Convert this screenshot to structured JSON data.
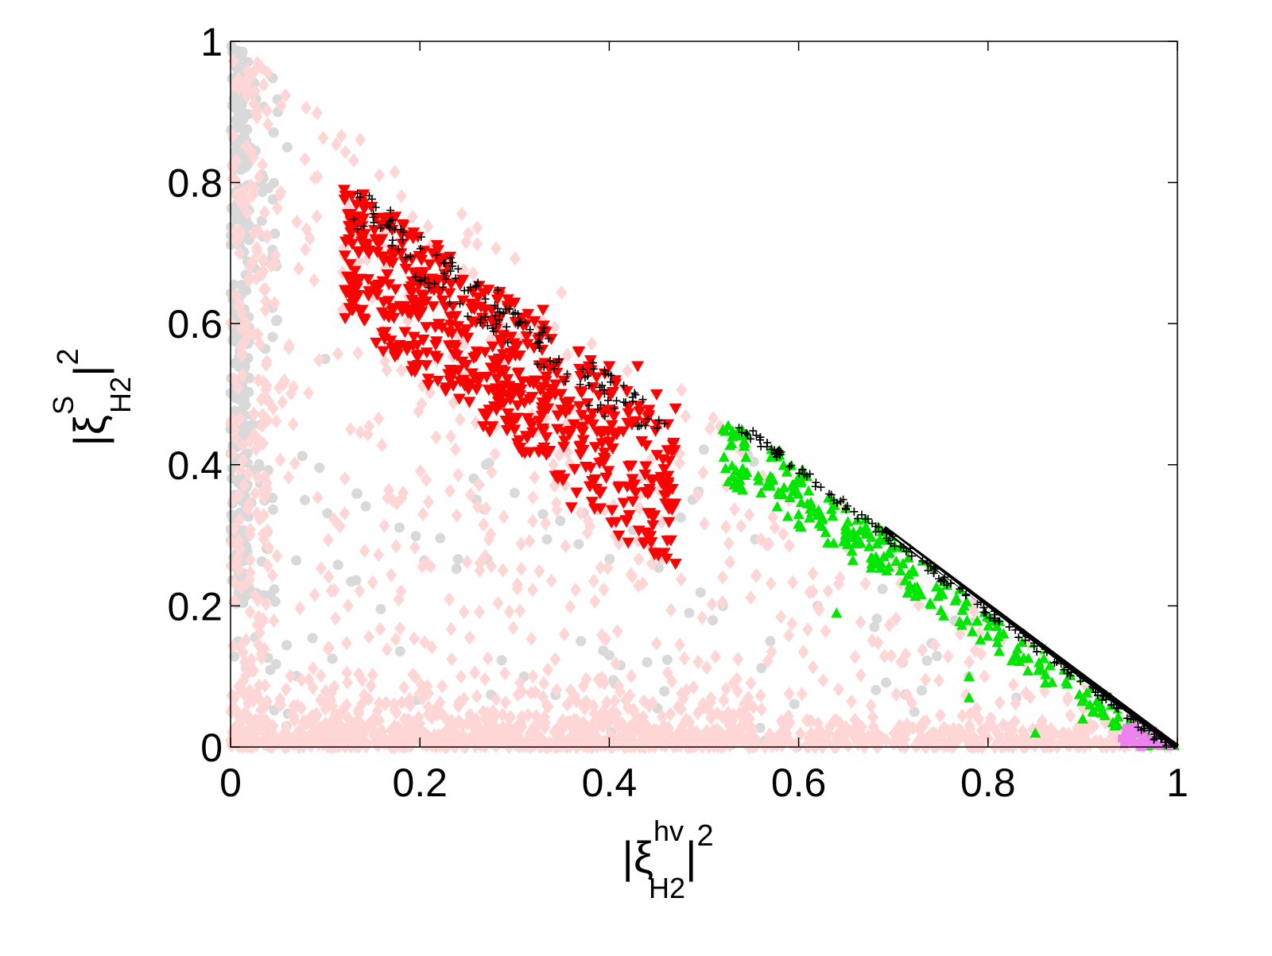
{
  "chart_data": {
    "type": "scatter",
    "title": "",
    "xlabel": {
      "base": "|ξ",
      "subscript": "H2",
      "superscript": "hv",
      "close": "|",
      "power": "2"
    },
    "ylabel": {
      "base": "|ξ",
      "subscript": "H2",
      "superscript": "S",
      "close": "|",
      "power": "2"
    },
    "xlim": [
      0,
      1
    ],
    "ylim": [
      0,
      1
    ],
    "xticks": [
      "0",
      "0.2",
      "0.4",
      "0.6",
      "0.8",
      "1"
    ],
    "yticks": [
      "0",
      "0.2",
      "0.4",
      "0.6",
      "0.8",
      "1"
    ],
    "grid": false,
    "legend": "none",
    "colors": {
      "background_points": "#d9d9d9",
      "pink_diamonds": "#ffd6d6",
      "red_triangles_down": "#ff0000",
      "green_triangles_up": "#00e600",
      "magenta_squares": "#ee82ee",
      "black_plus": "#000000",
      "diagonal_line": "#000000"
    },
    "series": [
      {
        "marker": "circle",
        "color": "#d9d9d9",
        "regions": [
          {
            "x": [
              0.0,
              0.02
            ],
            "y": [
              0.2,
              1.0
            ],
            "count": 260
          },
          {
            "x": [
              0.0,
              0.05
            ],
            "y": [
              0.0,
              0.95
            ],
            "count": 90
          },
          {
            "x": [
              0.05,
              0.8
            ],
            "y": [
              0.0,
              0.45
            ],
            "count": 80
          }
        ],
        "points": [
          [
            0.02,
            0.95
          ],
          [
            0.05,
            0.9
          ],
          [
            0.06,
            0.85
          ],
          [
            0.1,
            0.55
          ],
          [
            0.27,
            0.4
          ],
          [
            0.3,
            0.36
          ],
          [
            0.26,
            0.35
          ],
          [
            0.33,
            0.33
          ],
          [
            0.37,
            0.15
          ],
          [
            0.4,
            0.13
          ],
          [
            0.31,
            0.1
          ],
          [
            0.44,
            0.12
          ],
          [
            0.52,
            0.2
          ],
          [
            0.57,
            0.15
          ],
          [
            0.62,
            0.2
          ],
          [
            0.68,
            0.17
          ],
          [
            0.71,
            0.12
          ],
          [
            0.73,
            0.08
          ],
          [
            0.78,
            0.1
          ],
          [
            0.83,
            0.07
          ]
        ]
      },
      {
        "marker": "diamond",
        "color": "#ffd6d6",
        "regions": [
          {
            "x": [
              0.0,
              1.0
            ],
            "y": [
              0.0,
              0.05
            ],
            "count": 700
          },
          {
            "x": [
              0.0,
              0.55
            ],
            "y": [
              0.0,
              0.12
            ],
            "count": 500
          },
          {
            "x": [
              0.0,
              0.04
            ],
            "y": [
              0.0,
              1.0
            ],
            "count": 150
          },
          {
            "x": [
              0.0,
              1.0
            ],
            "y": [
              0.0,
              1.0
            ],
            "count": 550
          }
        ],
        "points": []
      },
      {
        "marker": "triangle-down",
        "color": "#ff0000",
        "regions": [
          {
            "x": [
              0.12,
              0.47
            ],
            "y": [
              0.26,
              0.79
            ],
            "count": 600
          }
        ],
        "points": [
          [
            0.12,
            0.79
          ],
          [
            0.14,
            0.77
          ],
          [
            0.16,
            0.72
          ],
          [
            0.3,
            0.63
          ],
          [
            0.33,
            0.62
          ],
          [
            0.4,
            0.54
          ],
          [
            0.43,
            0.54
          ],
          [
            0.45,
            0.5
          ],
          [
            0.47,
            0.48
          ],
          [
            0.47,
            0.26
          ],
          [
            0.44,
            0.3
          ],
          [
            0.41,
            0.3
          ],
          [
            0.42,
            0.29
          ],
          [
            0.36,
            0.34
          ],
          [
            0.3,
            0.45
          ],
          [
            0.22,
            0.6
          ],
          [
            0.18,
            0.7
          ]
        ]
      },
      {
        "marker": "triangle-up",
        "color": "#00e600",
        "regions": [
          {
            "x": [
              0.52,
              1.0
            ],
            "y": [
              0.0,
              0.46
            ],
            "count": 260
          }
        ],
        "points": [
          [
            0.52,
            0.45
          ],
          [
            0.53,
            0.44
          ],
          [
            0.54,
            0.45
          ],
          [
            0.57,
            0.37
          ],
          [
            0.6,
            0.33
          ],
          [
            0.64,
            0.19
          ],
          [
            0.65,
            0.3
          ],
          [
            0.66,
            0.29
          ],
          [
            0.69,
            0.27
          ],
          [
            0.75,
            0.22
          ],
          [
            0.78,
            0.1
          ],
          [
            0.78,
            0.07
          ],
          [
            0.85,
            0.02
          ],
          [
            0.9,
            0.04
          ],
          [
            0.95,
            0.02
          ]
        ]
      },
      {
        "marker": "square",
        "color": "#ee82ee",
        "regions": [
          {
            "x": [
              0.94,
              1.0
            ],
            "y": [
              0.0,
              0.03
            ],
            "count": 45
          }
        ],
        "points": []
      },
      {
        "marker": "plus",
        "color": "#000000",
        "regions": [
          {
            "x": [
              0.12,
              0.52
            ],
            "y": [
              0.45,
              0.79
            ],
            "count": 140
          },
          {
            "x": [
              0.52,
              1.0
            ],
            "y": [
              0.0,
              0.46
            ],
            "count": 200
          }
        ],
        "points": []
      }
    ],
    "lines": [
      {
        "color": "#000000",
        "x": [
          0.69,
          1.0
        ],
        "y": [
          0.31,
          0.0
        ]
      },
      {
        "color": "#ffffff",
        "x": [
          0.7,
          0.99
        ],
        "y": [
          0.3,
          0.0
        ]
      }
    ]
  }
}
